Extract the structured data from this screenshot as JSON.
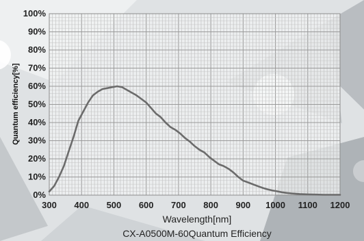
{
  "chart_data": {
    "type": "line",
    "title": "CX-A0500M-60Quantum Efficiency",
    "xlabel": "Wavelength[nm]",
    "ylabel": "Quantum efficiency[%]",
    "xlim": [
      300,
      1200
    ],
    "ylim": [
      0,
      100
    ],
    "grid": true,
    "x_ticks": [
      "300",
      "400",
      "500",
      "600",
      "700",
      "800",
      "900",
      "1000",
      "1100",
      "1200"
    ],
    "y_ticks": [
      "0%",
      "10%",
      "20%",
      "30%",
      "40%",
      "50%",
      "60%",
      "70%",
      "80%",
      "90%",
      "100%"
    ],
    "line_color": "#6b6b6b",
    "series": [
      {
        "x": [
          300,
          315,
          330,
          345,
          360,
          375,
          390,
          405,
          420,
          435,
          450,
          465,
          480,
          495,
          510,
          525,
          540,
          555,
          570,
          585,
          600,
          615,
          630,
          645,
          660,
          675,
          690,
          705,
          720,
          735,
          750,
          765,
          780,
          795,
          810,
          825,
          840,
          855,
          870,
          885,
          900,
          915,
          930,
          945,
          960,
          975,
          990,
          1005,
          1020,
          1035,
          1050,
          1075,
          1100,
          1125,
          1150,
          1175,
          1200
        ],
        "y": [
          2,
          5,
          10,
          16,
          24,
          32,
          41,
          46,
          51,
          55,
          57,
          58.5,
          59,
          59.5,
          60,
          59.5,
          58,
          56.5,
          55,
          53,
          51,
          48,
          45,
          43,
          40,
          37.5,
          36,
          34,
          31.5,
          29.5,
          27,
          25,
          23.5,
          21,
          19,
          17,
          16,
          14.5,
          12.5,
          10,
          8,
          7,
          6,
          5,
          4,
          3.2,
          2.6,
          2.1,
          1.6,
          1.2,
          0.9,
          0.6,
          0.4,
          0.3,
          0.2,
          0.2,
          0.2
        ]
      }
    ]
  }
}
